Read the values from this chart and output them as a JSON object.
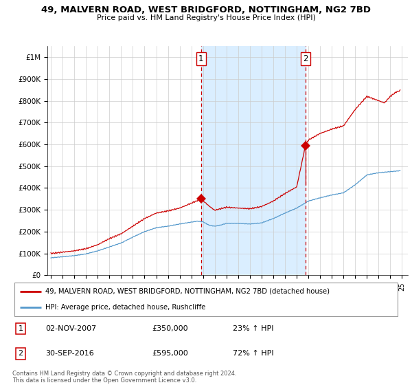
{
  "title": "49, MALVERN ROAD, WEST BRIDGFORD, NOTTINGHAM, NG2 7BD",
  "subtitle": "Price paid vs. HM Land Registry's House Price Index (HPI)",
  "legend_line1": "49, MALVERN ROAD, WEST BRIDGFORD, NOTTINGHAM, NG2 7BD (detached house)",
  "legend_line2": "HPI: Average price, detached house, Rushcliffe",
  "annotation1_date": "02-NOV-2007",
  "annotation1_price": "£350,000",
  "annotation1_hpi": "23% ↑ HPI",
  "annotation2_date": "30-SEP-2016",
  "annotation2_price": "£595,000",
  "annotation2_hpi": "72% ↑ HPI",
  "footer": "Contains HM Land Registry data © Crown copyright and database right 2024.\nThis data is licensed under the Open Government Licence v3.0.",
  "red_color": "#cc0000",
  "blue_color": "#5599cc",
  "vline_color": "#cc0000",
  "background_color": "#ffffff",
  "grid_color": "#cccccc",
  "shaded_color": "#daeeff",
  "ylim": [
    0,
    1050000
  ],
  "yticks": [
    0,
    100000,
    200000,
    300000,
    400000,
    500000,
    600000,
    700000,
    800000,
    900000,
    1000000
  ],
  "ytick_labels": [
    "£0",
    "£100K",
    "£200K",
    "£300K",
    "£400K",
    "£500K",
    "£600K",
    "£700K",
    "£800K",
    "£900K",
    "£1M"
  ],
  "xlim_start": 1994.7,
  "xlim_end": 2025.5,
  "vline1_x": 2007.83,
  "vline2_x": 2016.75,
  "sale1_x": 2007.83,
  "sale1_y": 350000,
  "sale2_x": 2016.75,
  "sale2_y": 595000
}
